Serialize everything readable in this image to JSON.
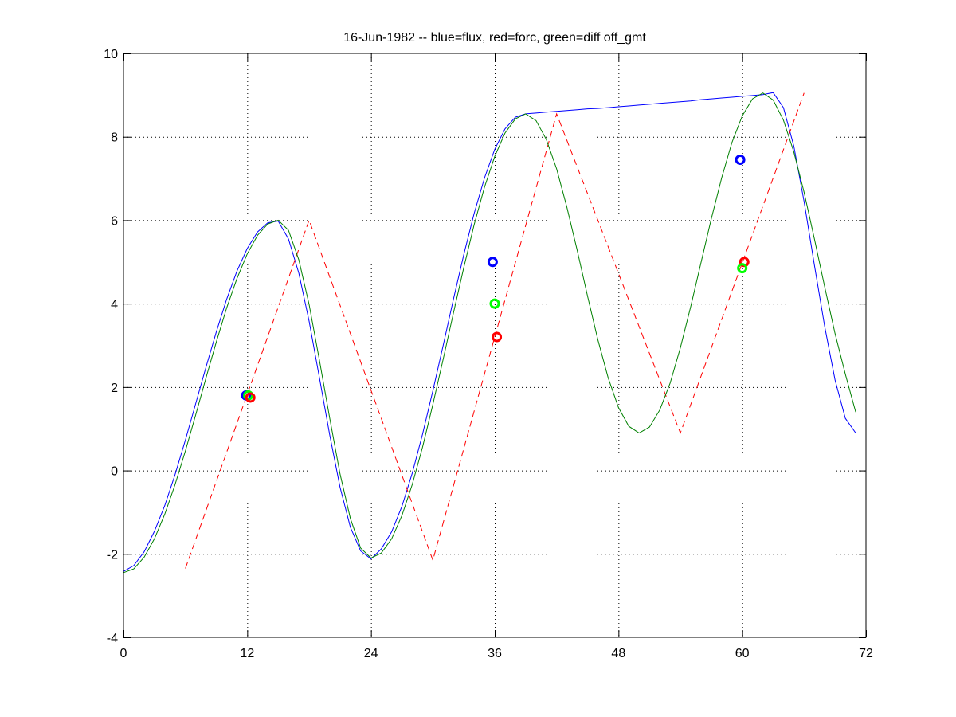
{
  "chart_data": {
    "type": "line",
    "title": "16-Jun-1982 -- blue=flux, red=forc, green=diff off_gmt",
    "xlabel": "",
    "ylabel": "",
    "xlim": [
      0,
      72
    ],
    "ylim": [
      -4,
      10
    ],
    "xticks": [
      0,
      12,
      24,
      36,
      48,
      60,
      72
    ],
    "yticks": [
      -4,
      -2,
      0,
      2,
      4,
      6,
      8,
      10
    ],
    "grid": true,
    "legend": "none",
    "series": [
      {
        "name": "flux",
        "color": "#0000ff",
        "style": "solid",
        "x": [
          0,
          1,
          2,
          3,
          4,
          5,
          6,
          7,
          8,
          9,
          10,
          11,
          12,
          13,
          14,
          15,
          16,
          17,
          18,
          19,
          20,
          21,
          22,
          23,
          24,
          25,
          26,
          27,
          28,
          29,
          30,
          31,
          32,
          33,
          34,
          35,
          36,
          37,
          38,
          39,
          40,
          41,
          42,
          43,
          44,
          45,
          46,
          47,
          48,
          49,
          50,
          51,
          52,
          53,
          54,
          55,
          56,
          57,
          58,
          59,
          60,
          61,
          62,
          63,
          64,
          65,
          66,
          67,
          68,
          69,
          70,
          71
        ],
        "y": [
          -2.42,
          -2.28,
          -1.95,
          -1.46,
          -0.84,
          -0.1,
          0.73,
          1.6,
          2.48,
          3.32,
          4.1,
          4.78,
          5.32,
          5.72,
          5.94,
          5.98,
          5.55,
          4.73,
          3.58,
          2.23,
          0.85,
          -0.4,
          -1.36,
          -1.93,
          -2.12,
          -1.88,
          -1.47,
          -0.86,
          -0.07,
          0.87,
          1.91,
          3.0,
          4.11,
          5.18,
          6.16,
          7.01,
          7.7,
          8.19,
          8.47,
          8.55,
          8.57,
          8.59,
          8.61,
          8.63,
          8.65,
          8.67,
          8.68,
          8.7,
          8.72,
          8.74,
          8.76,
          8.78,
          8.8,
          8.82,
          8.84,
          8.86,
          8.89,
          8.91,
          8.93,
          8.95,
          8.97,
          8.99,
          9.01,
          9.06,
          8.7,
          7.78,
          6.45,
          4.92,
          3.45,
          2.17,
          1.25,
          0.9
        ]
      },
      {
        "name": "forc",
        "color": "#ff0000",
        "style": "dashed",
        "x": [
          6,
          18,
          30,
          42,
          54,
          66
        ],
        "y": [
          -2.35,
          6.0,
          -2.15,
          8.55,
          0.9,
          9.05
        ]
      },
      {
        "name": "diff",
        "color": "#008000",
        "style": "solid",
        "x": [
          0,
          1,
          2,
          3,
          4,
          5,
          6,
          7,
          8,
          9,
          10,
          11,
          12,
          13,
          14,
          15,
          16,
          17,
          18,
          19,
          20,
          21,
          22,
          23,
          24,
          25,
          26,
          27,
          28,
          29,
          30,
          31,
          32,
          33,
          34,
          35,
          36,
          37,
          38,
          39,
          40,
          41,
          42,
          43,
          44,
          45,
          46,
          47,
          48,
          49,
          50,
          51,
          52,
          53,
          54,
          55,
          56,
          57,
          58,
          59,
          60,
          61,
          62,
          63,
          64,
          65,
          66,
          67,
          68,
          69,
          70,
          71
        ],
        "y": [
          -2.45,
          -2.36,
          -2.08,
          -1.64,
          -1.05,
          -0.34,
          0.47,
          1.33,
          2.22,
          3.08,
          3.89,
          4.6,
          5.19,
          5.64,
          5.91,
          6.0,
          5.76,
          5.05,
          3.98,
          2.65,
          1.25,
          -0.08,
          -1.15,
          -1.86,
          -2.1,
          -1.98,
          -1.64,
          -1.08,
          -0.34,
          0.56,
          1.58,
          2.67,
          3.78,
          4.87,
          5.89,
          6.79,
          7.53,
          8.09,
          8.43,
          8.55,
          8.39,
          7.94,
          7.23,
          6.31,
          5.27,
          4.18,
          3.14,
          2.22,
          1.51,
          1.06,
          0.9,
          1.04,
          1.45,
          2.09,
          2.94,
          3.92,
          4.98,
          6.03,
          7.01,
          7.86,
          8.5,
          8.91,
          9.05,
          8.88,
          8.4,
          7.64,
          6.67,
          5.55,
          4.4,
          3.28,
          2.31,
          1.4
        ]
      }
    ],
    "markers": [
      {
        "series": "flux",
        "color": "#0000ff",
        "x": 11.9,
        "y": 1.8
      },
      {
        "series": "diff",
        "color": "#00ff00",
        "x": 12.1,
        "y": 1.8
      },
      {
        "series": "forc",
        "color": "#ff0000",
        "x": 12.3,
        "y": 1.75
      },
      {
        "series": "flux",
        "color": "#0000ff",
        "x": 35.8,
        "y": 5.0
      },
      {
        "series": "diff",
        "color": "#00ff00",
        "x": 36.0,
        "y": 4.0
      },
      {
        "series": "forc",
        "color": "#ff0000",
        "x": 36.2,
        "y": 3.2
      },
      {
        "series": "flux",
        "color": "#0000ff",
        "x": 59.8,
        "y": 7.45
      },
      {
        "series": "forc",
        "color": "#ff0000",
        "x": 60.2,
        "y": 5.0
      },
      {
        "series": "diff",
        "color": "#00ff00",
        "x": 60.0,
        "y": 4.85
      }
    ]
  }
}
